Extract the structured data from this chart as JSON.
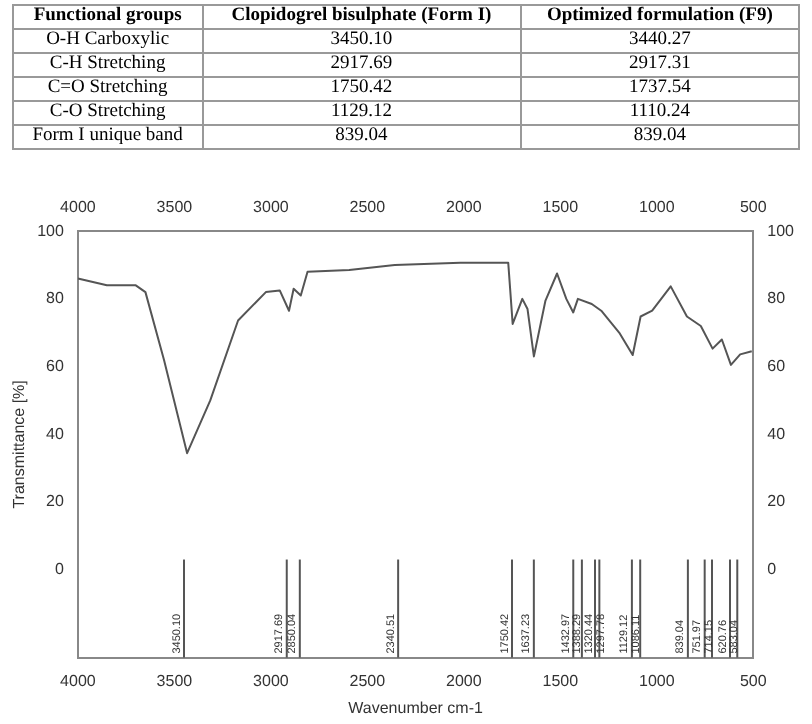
{
  "chart_data": {
    "type": "line",
    "xlabel": "Wavenumber cm-1",
    "ylabel": "Transmittance [%]",
    "annotations": [
      "Functional groups",
      "Clopidogrel bisulphate (Form I)",
      "Optimized formulation (F9)",
      "O-H Carboxylic",
      "3450.10",
      "3440.27",
      "C-H Stretching",
      "2917.69",
      "2917.31",
      "C=O Stretching",
      "1750.42",
      "1737.54",
      "C-O Stretching",
      "1129.12",
      "1110.24",
      "Form I unique band",
      "839.04",
      "839.04"
    ],
    "series": [
      {
        "color": "#555555",
        "x": [
          4000,
          3850,
          3700,
          3650,
          3554,
          3434,
          3314,
          3170,
          3026,
          2954,
          2906,
          2882,
          2845,
          2810,
          2594,
          2358,
          2018,
          1770,
          1747,
          1697,
          1670,
          1637,
          1577,
          1517,
          1469,
          1433,
          1409,
          1337,
          1288,
          1192,
          1125,
          1084,
          1024,
          928,
          844,
          772,
          711,
          663,
          616,
          568,
          508
        ],
        "values": [
          86,
          84,
          84,
          82,
          62,
          34.4,
          50,
          73.6,
          82,
          82.5,
          76.5,
          83,
          81,
          88,
          88.5,
          90,
          90.7,
          90.7,
          72.6,
          80,
          77,
          63,
          79.5,
          87.5,
          80,
          76,
          80,
          78.5,
          76.5,
          69.8,
          63.4,
          74.8,
          76.5,
          83.7,
          74.8,
          72,
          65.3,
          68,
          60.5,
          63.6,
          64.5
        ]
      }
    ],
    "xlim": [
      4000,
      500
    ],
    "xticks": [
      4000,
      3500,
      3000,
      2500,
      2000,
      1500,
      1000,
      500
    ],
    "x2lim": [
      4000,
      500
    ],
    "x2ticks": [
      4000,
      3500,
      3000,
      2500,
      2000,
      1500,
      1000,
      500
    ],
    "ylim": [
      -26,
      100
    ],
    "yticks": [
      0,
      20,
      40,
      60,
      80,
      100
    ],
    "y2lim": [
      -26,
      100
    ],
    "y2ticks": [
      0,
      20,
      40,
      60,
      80,
      100
    ],
    "ref_lines": [
      {
        "axis": "x",
        "value": 3450.1,
        "label": "3450.10"
      },
      {
        "axis": "x",
        "value": 2917.69,
        "label": "2917.69"
      },
      {
        "axis": "x",
        "value": 2850.04,
        "label": "2850.04"
      },
      {
        "axis": "x",
        "value": 2340.51,
        "label": "2340.51"
      },
      {
        "axis": "x",
        "value": 1750.42,
        "label": "1750.42"
      },
      {
        "axis": "x",
        "value": 1637.23,
        "label": "1637.23"
      },
      {
        "axis": "x",
        "value": 1432.97,
        "label": "1432.97"
      },
      {
        "axis": "x",
        "value": 1388.29,
        "label": "1388.29"
      },
      {
        "axis": "x",
        "value": 1320.44,
        "label": "1320.44"
      },
      {
        "axis": "x",
        "value": 1297.78,
        "label": "1297.78"
      },
      {
        "axis": "x",
        "value": 1129.12,
        "label": "1129.12"
      },
      {
        "axis": "x",
        "value": 1086.11,
        "label": "1086.11"
      },
      {
        "axis": "x",
        "value": 839.04,
        "label": "839.04"
      },
      {
        "axis": "x",
        "value": 751.97,
        "label": "751.97"
      },
      {
        "axis": "x",
        "value": 714.15,
        "label": "714.15"
      },
      {
        "axis": "x",
        "value": 620.76,
        "label": "620.76"
      },
      {
        "axis": "x",
        "value": 583.04,
        "label": "583.04"
      }
    ],
    "grid": false,
    "legend": false,
    "marker": "none",
    "line_style": "solid"
  }
}
